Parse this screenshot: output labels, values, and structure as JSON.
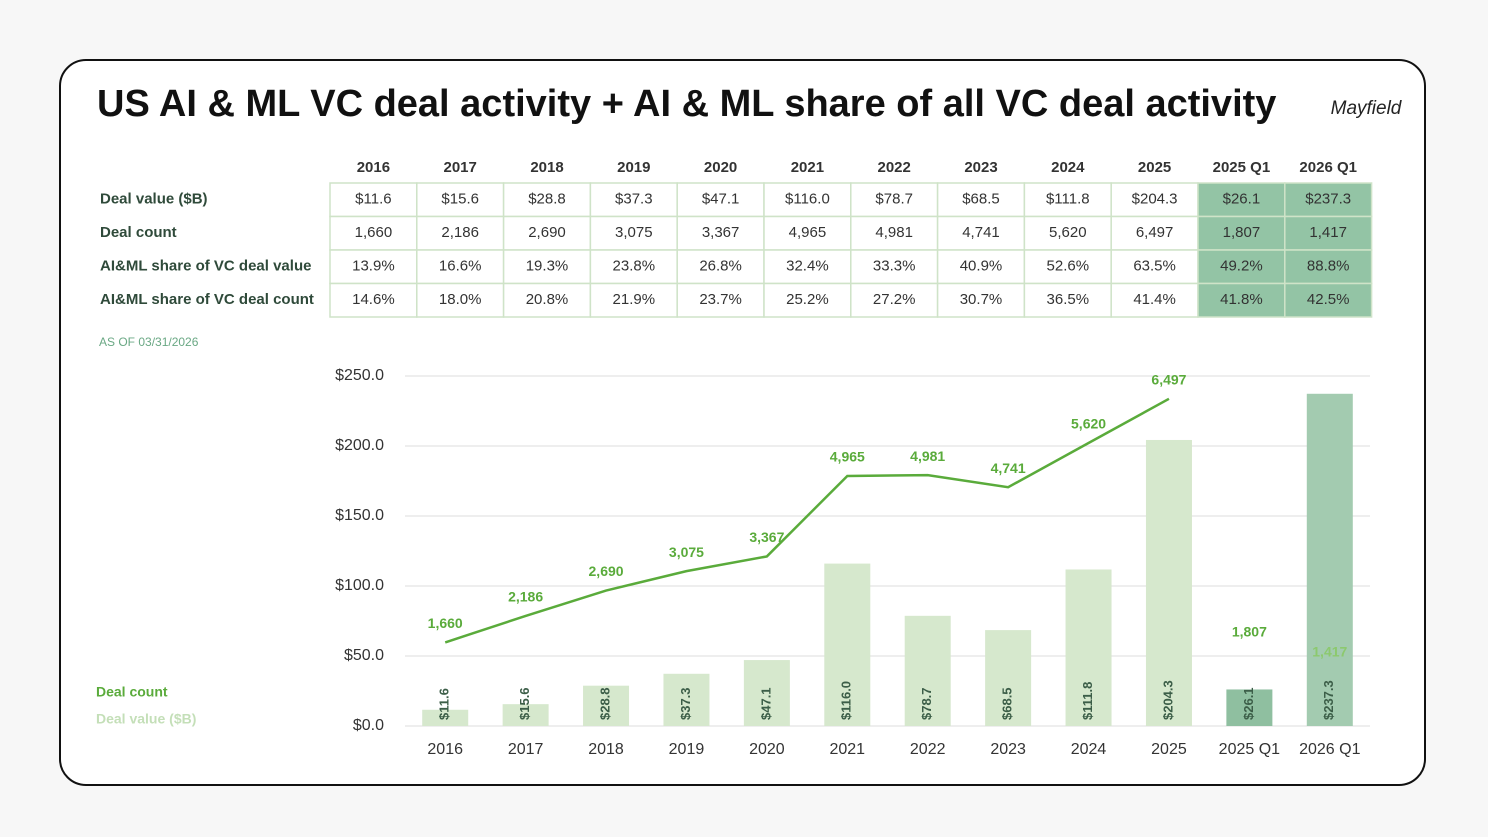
{
  "chart_data": {
    "type": "bar",
    "title": "US AI & ML VC deal activity + AI & ML share of all VC deal activity",
    "brand": "Mayfield",
    "note": "AS OF 03/31/2026",
    "table": {
      "columns": [
        "2016",
        "2017",
        "2018",
        "2019",
        "2020",
        "2021",
        "2022",
        "2023",
        "2024",
        "2025",
        "2025 Q1",
        "2026 Q1"
      ],
      "column_fills": [
        "#ffffff",
        "#ffffff",
        "#ffffff",
        "#ffffff",
        "#ffffff",
        "#ffffff",
        "#ffffff",
        "#ffffff",
        "#ffffff",
        "#ffffff",
        "#93c4a5",
        "#93c4a5"
      ],
      "rows": [
        {
          "label": "Deal value ($B)",
          "cells": [
            "$11.6",
            "$15.6",
            "$28.8",
            "$37.3",
            "$47.1",
            "$116.0",
            "$78.7",
            "$68.5",
            "$111.8",
            "$204.3",
            "$26.1",
            "$237.3"
          ]
        },
        {
          "label": "Deal count",
          "cells": [
            "1,660",
            "2,186",
            "2,690",
            "3,075",
            "3,367",
            "4,965",
            "4,981",
            "4,741",
            "5,620",
            "6,497",
            "1,807",
            "1,417"
          ]
        },
        {
          "label": "AI&ML share of VC deal value",
          "cells": [
            "13.9%",
            "16.6%",
            "19.3%",
            "23.8%",
            "26.8%",
            "32.4%",
            "33.3%",
            "40.9%",
            "52.6%",
            "63.5%",
            "49.2%",
            "88.8%"
          ]
        },
        {
          "label": "AI&ML share of VC deal count",
          "cells": [
            "14.6%",
            "18.0%",
            "20.8%",
            "21.9%",
            "23.7%",
            "25.2%",
            "27.2%",
            "30.7%",
            "36.5%",
            "41.4%",
            "41.8%",
            "42.5%"
          ]
        }
      ]
    },
    "categories": [
      "2016",
      "2017",
      "2018",
      "2019",
      "2020",
      "2021",
      "2022",
      "2023",
      "2024",
      "2025",
      "2025 Q1",
      "2026 Q1"
    ],
    "ylim": [
      0,
      250
    ],
    "yticks": [
      {
        "value": 0,
        "label": "$0.0"
      },
      {
        "value": 50,
        "label": "$50.0"
      },
      {
        "value": 100,
        "label": "$100.0"
      },
      {
        "value": 150,
        "label": "$150.0"
      },
      {
        "value": 200,
        "label": "$200.0"
      },
      {
        "value": 250,
        "label": "$250.0"
      }
    ],
    "y2lim": [
      0,
      6950
    ],
    "grid": true,
    "legend": "bottom-left",
    "series": [
      {
        "name": "Deal value ($B)",
        "type": "bar",
        "color": "#d6e8cd",
        "colors": [
          "#d6e8cd",
          "#d6e8cd",
          "#d6e8cd",
          "#d6e8cd",
          "#d6e8cd",
          "#d6e8cd",
          "#d6e8cd",
          "#d6e8cd",
          "#d6e8cd",
          "#d6e8cd",
          "#8fbfa0",
          "#a3cbb0"
        ],
        "values": [
          11.6,
          15.6,
          28.8,
          37.3,
          47.1,
          116.0,
          78.7,
          68.5,
          111.8,
          204.3,
          26.1,
          237.3
        ],
        "value_labels": [
          "$11.6",
          "$15.6",
          "$28.8",
          "$37.3",
          "$47.1",
          "$116.0",
          "$78.7",
          "$68.5",
          "$111.8",
          "$204.3",
          "$26.1",
          "$237.3"
        ]
      },
      {
        "name": "Deal count",
        "type": "line",
        "axis": "y2",
        "color": "#5aab3b",
        "values": [
          1660,
          2186,
          2690,
          3075,
          3367,
          4965,
          4981,
          4741,
          5620,
          6497,
          null,
          null
        ],
        "value_labels": [
          "1,660",
          "2,186",
          "2,690",
          "3,075",
          "3,367",
          "4,965",
          "4,981",
          "4,741",
          "5,620",
          "6,497",
          null,
          null
        ]
      },
      {
        "type": "labels",
        "axis": "y2",
        "colors": [
          null,
          null,
          null,
          null,
          null,
          null,
          null,
          null,
          null,
          null,
          "#5aab3b",
          "#8cc96e"
        ],
        "values": [
          null,
          null,
          null,
          null,
          null,
          null,
          null,
          null,
          null,
          null,
          1807,
          1417
        ],
        "value_labels": [
          null,
          null,
          null,
          null,
          null,
          null,
          null,
          null,
          null,
          null,
          "1,807",
          "1,417"
        ]
      }
    ]
  }
}
